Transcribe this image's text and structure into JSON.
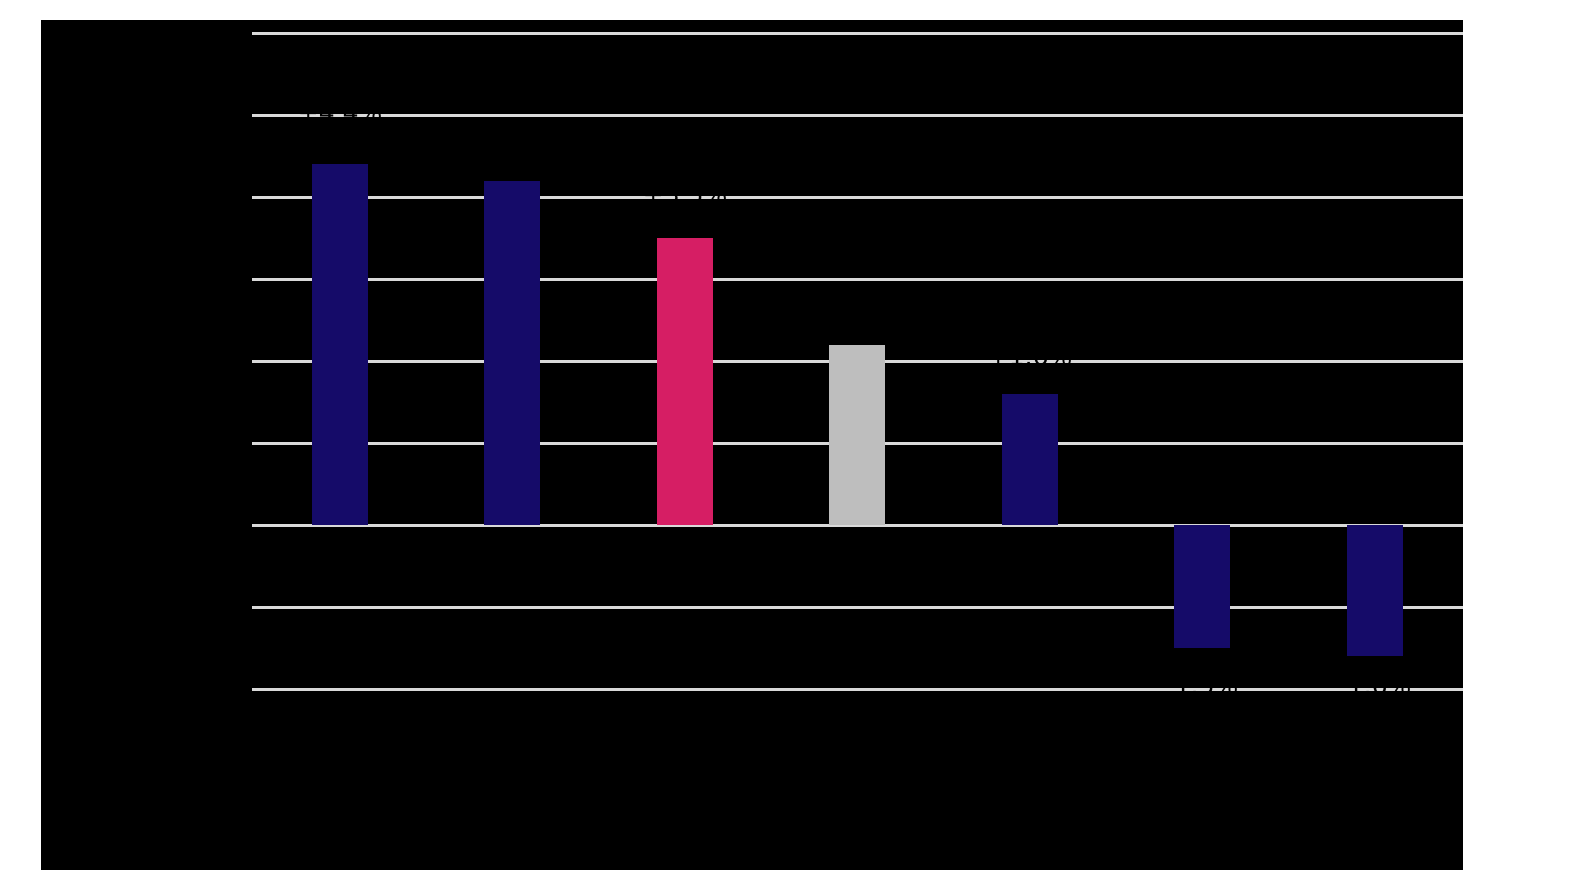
{
  "page": {
    "background_color": "#ffffff"
  },
  "figure": {
    "background_color": "#000000",
    "gridline_color": "#d9d9d9",
    "text_color": "#000000"
  },
  "chart_data": {
    "type": "bar",
    "title": "",
    "categories": [
      "",
      "",
      "",
      "",
      "",
      "",
      ""
    ],
    "values": [
      4.4,
      4.2,
      3.5,
      2.2,
      1.6,
      -1.5,
      -1.6
    ],
    "bar_labels": [
      "+4.4%",
      "+4.2%",
      "+3.5%",
      "+2.2%",
      "+1.6%",
      "-1.5%",
      "-1.6%"
    ],
    "bar_colors": [
      "#150b69",
      "#150b69",
      "#d61e64",
      "#bebebe",
      "#150b69",
      "#150b69",
      "#150b69"
    ],
    "ylabel": "",
    "xlabel": "",
    "ylim": [
      -2,
      6
    ],
    "gridline_interval": 1,
    "grid": true,
    "legend": false
  }
}
